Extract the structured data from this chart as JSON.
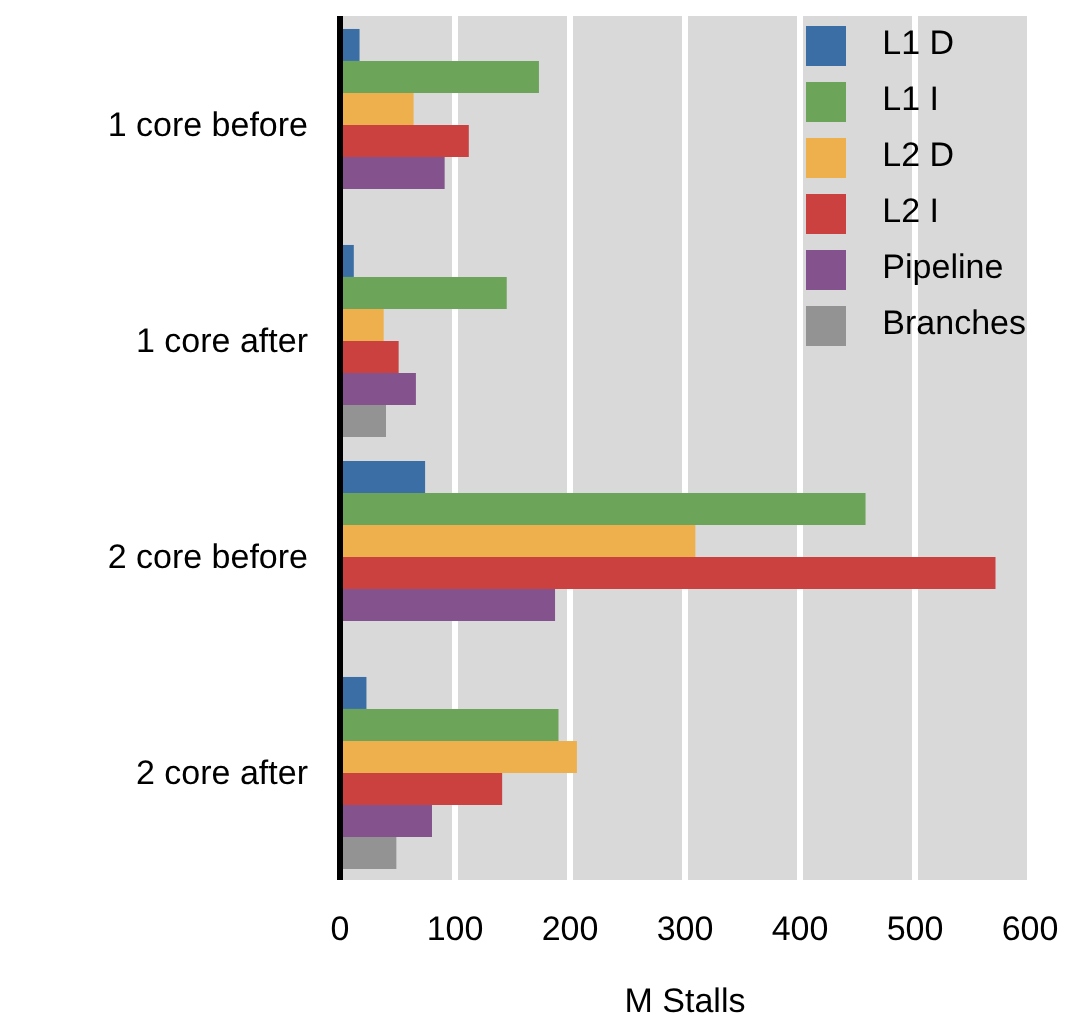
{
  "chart_data": {
    "type": "bar",
    "orientation": "horizontal",
    "xlabel": "M Stalls",
    "categories": [
      "1 core before",
      "1 core after",
      "2 core before",
      "2 core after"
    ],
    "series": [
      {
        "name": "L1 D",
        "color": "#3b6ea5",
        "values": [
          17,
          12,
          74,
          23
        ]
      },
      {
        "name": "L1 I",
        "color": "#6ca55a",
        "values": [
          173,
          145,
          457,
          190
        ]
      },
      {
        "name": "L2 D",
        "color": "#eeb04c",
        "values": [
          64,
          38,
          309,
          206
        ]
      },
      {
        "name": "L2 I",
        "color": "#cb413f",
        "values": [
          112,
          51,
          570,
          141
        ]
      },
      {
        "name": "Pipeline",
        "color": "#84528d",
        "values": [
          91,
          66,
          187,
          80
        ]
      },
      {
        "name": "Branches",
        "color": "#939393",
        "values": [
          null,
          40,
          null,
          49
        ]
      }
    ],
    "xlim": [
      0,
      600
    ],
    "xticks": [
      0,
      100,
      200,
      300,
      400,
      500,
      600
    ],
    "grid": "x",
    "legend": "top right"
  }
}
